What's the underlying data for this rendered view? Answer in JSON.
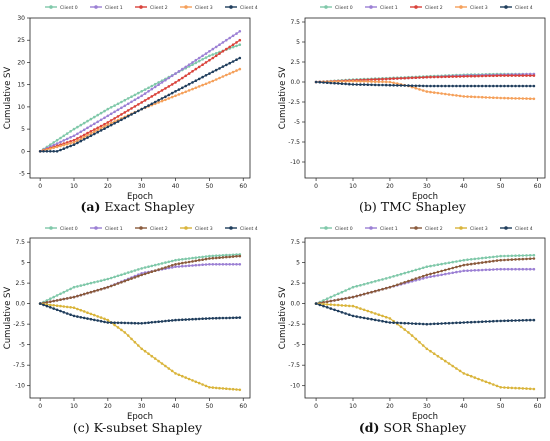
{
  "legend_labels": [
    "Client 0",
    "Client 1",
    "Client 2",
    "Client 3",
    "Client 4"
  ],
  "colors": [
    "#7fc8a9",
    "#9b7fd4",
    "#d9423a",
    "#f5a05a",
    "#1f3d5c"
  ],
  "colors_lower": [
    "#7fc8a9",
    "#9b7fd4",
    "#8a5a3c",
    "#d9b43a",
    "#1f3d5c"
  ],
  "captions": [
    {
      "tag": "(a)",
      "text": "Exact Shapley"
    },
    {
      "tag": "(b)",
      "text": "TMC Shapley"
    },
    {
      "tag": "(c)",
      "text": "K-subset Shapley"
    },
    {
      "tag": "(d)",
      "text": "SOR Shapley"
    }
  ],
  "chart_data": [
    {
      "type": "line",
      "xlabel": "Epoch",
      "ylabel": "Cumulative SV",
      "xlim": [
        -3,
        62
      ],
      "ylim": [
        -6,
        30
      ],
      "xticks": [
        0,
        10,
        20,
        30,
        40,
        50,
        60
      ],
      "yticks": [
        -5,
        0,
        5,
        10,
        15,
        20,
        25,
        30
      ],
      "series": [
        {
          "name": "Client 0",
          "x": [
            0,
            10,
            20,
            30,
            40,
            50,
            59
          ],
          "values": [
            0,
            5,
            9.5,
            13.5,
            17.5,
            21.5,
            24
          ]
        },
        {
          "name": "Client 1",
          "x": [
            0,
            10,
            20,
            30,
            40,
            50,
            59
          ],
          "values": [
            0,
            3.5,
            8,
            12.5,
            17.5,
            22.5,
            27
          ]
        },
        {
          "name": "Client 2",
          "x": [
            0,
            10,
            20,
            30,
            40,
            50,
            59
          ],
          "values": [
            0,
            2.5,
            6.5,
            11,
            15.5,
            20.5,
            25
          ]
        },
        {
          "name": "Client 3",
          "x": [
            0,
            10,
            20,
            30,
            40,
            50,
            59
          ],
          "values": [
            0,
            2,
            6,
            9.5,
            12.5,
            15.5,
            18.5
          ]
        },
        {
          "name": "Client 4",
          "x": [
            0,
            5,
            10,
            20,
            30,
            40,
            50,
            59
          ],
          "values": [
            0,
            0,
            1.5,
            5.5,
            9.5,
            13.5,
            17.5,
            21
          ]
        }
      ]
    },
    {
      "type": "line",
      "xlabel": "Epoch",
      "ylabel": "Cumulative SV",
      "xlim": [
        -3,
        62
      ],
      "ylim": [
        -12,
        8
      ],
      "xticks": [
        0,
        10,
        20,
        30,
        40,
        50,
        60
      ],
      "yticks": [
        -10,
        -7.5,
        -5,
        -2.5,
        0,
        2.5,
        5,
        7.5
      ],
      "series": [
        {
          "name": "Client 0",
          "x": [
            0,
            10,
            20,
            30,
            40,
            50,
            59
          ],
          "values": [
            0,
            0.3,
            0.5,
            0.7,
            0.9,
            1.0,
            1.0
          ]
        },
        {
          "name": "Client 1",
          "x": [
            0,
            10,
            20,
            30,
            40,
            50,
            59
          ],
          "values": [
            0,
            0.2,
            0.4,
            0.6,
            0.8,
            0.9,
            1.0
          ]
        },
        {
          "name": "Client 2",
          "x": [
            0,
            10,
            20,
            30,
            40,
            50,
            59
          ],
          "values": [
            0,
            0.2,
            0.4,
            0.6,
            0.7,
            0.8,
            0.8
          ]
        },
        {
          "name": "Client 3",
          "x": [
            0,
            10,
            20,
            25,
            30,
            40,
            50,
            59
          ],
          "values": [
            0,
            0.1,
            0,
            -0.5,
            -1.2,
            -1.8,
            -2.0,
            -2.1
          ]
        },
        {
          "name": "Client 4",
          "x": [
            0,
            10,
            20,
            30,
            40,
            50,
            59
          ],
          "values": [
            0,
            -0.3,
            -0.4,
            -0.5,
            -0.5,
            -0.5,
            -0.5
          ]
        }
      ]
    },
    {
      "type": "line",
      "xlabel": "Epoch",
      "ylabel": "Cumulative SV",
      "xlim": [
        -3,
        62
      ],
      "ylim": [
        -11.5,
        8
      ],
      "xticks": [
        0,
        10,
        20,
        30,
        40,
        50,
        60
      ],
      "yticks": [
        -10,
        -7.5,
        -5,
        -2.5,
        0,
        2.5,
        5,
        7.5
      ],
      "series": [
        {
          "name": "Client 0",
          "x": [
            0,
            10,
            20,
            30,
            40,
            50,
            59
          ],
          "values": [
            0,
            2,
            3,
            4.3,
            5.3,
            5.8,
            6
          ]
        },
        {
          "name": "Client 1",
          "x": [
            0,
            10,
            20,
            30,
            40,
            50,
            59
          ],
          "values": [
            0,
            0.8,
            2,
            3.7,
            4.5,
            4.8,
            4.8
          ]
        },
        {
          "name": "Client 2",
          "x": [
            0,
            10,
            20,
            30,
            40,
            50,
            59
          ],
          "values": [
            0,
            0.8,
            2,
            3.5,
            4.8,
            5.5,
            5.8
          ]
        },
        {
          "name": "Client 3",
          "x": [
            0,
            10,
            20,
            25,
            30,
            40,
            50,
            59
          ],
          "values": [
            0,
            -0.5,
            -2,
            -3.5,
            -5.5,
            -8.5,
            -10.2,
            -10.5
          ]
        },
        {
          "name": "Client 4",
          "x": [
            0,
            10,
            20,
            30,
            40,
            50,
            59
          ],
          "values": [
            0,
            -1.5,
            -2.3,
            -2.4,
            -2,
            -1.8,
            -1.7
          ]
        }
      ]
    },
    {
      "type": "line",
      "xlabel": "Epoch",
      "ylabel": "Cumulative SV",
      "xlim": [
        -3,
        62
      ],
      "ylim": [
        -11.5,
        8
      ],
      "xticks": [
        0,
        10,
        20,
        30,
        40,
        50,
        60
      ],
      "yticks": [
        -10,
        -7.5,
        -5,
        -2.5,
        0,
        2.5,
        5,
        7.5
      ],
      "series": [
        {
          "name": "Client 0",
          "x": [
            0,
            10,
            20,
            30,
            40,
            50,
            59
          ],
          "values": [
            0,
            2,
            3.2,
            4.5,
            5.3,
            5.8,
            5.9
          ]
        },
        {
          "name": "Client 1",
          "x": [
            0,
            10,
            20,
            30,
            40,
            50,
            59
          ],
          "values": [
            0,
            0.8,
            2,
            3.2,
            4,
            4.2,
            4.2
          ]
        },
        {
          "name": "Client 2",
          "x": [
            0,
            10,
            20,
            30,
            40,
            50,
            59
          ],
          "values": [
            0,
            0.8,
            2,
            3.5,
            4.7,
            5.3,
            5.5
          ]
        },
        {
          "name": "Client 3",
          "x": [
            0,
            10,
            20,
            25,
            30,
            40,
            50,
            59
          ],
          "values": [
            0,
            -0.3,
            -1.8,
            -3.5,
            -5.5,
            -8.5,
            -10.2,
            -10.4
          ]
        },
        {
          "name": "Client 4",
          "x": [
            0,
            10,
            20,
            30,
            40,
            50,
            59
          ],
          "values": [
            0,
            -1.5,
            -2.3,
            -2.5,
            -2.3,
            -2.1,
            -2
          ]
        }
      ]
    }
  ]
}
